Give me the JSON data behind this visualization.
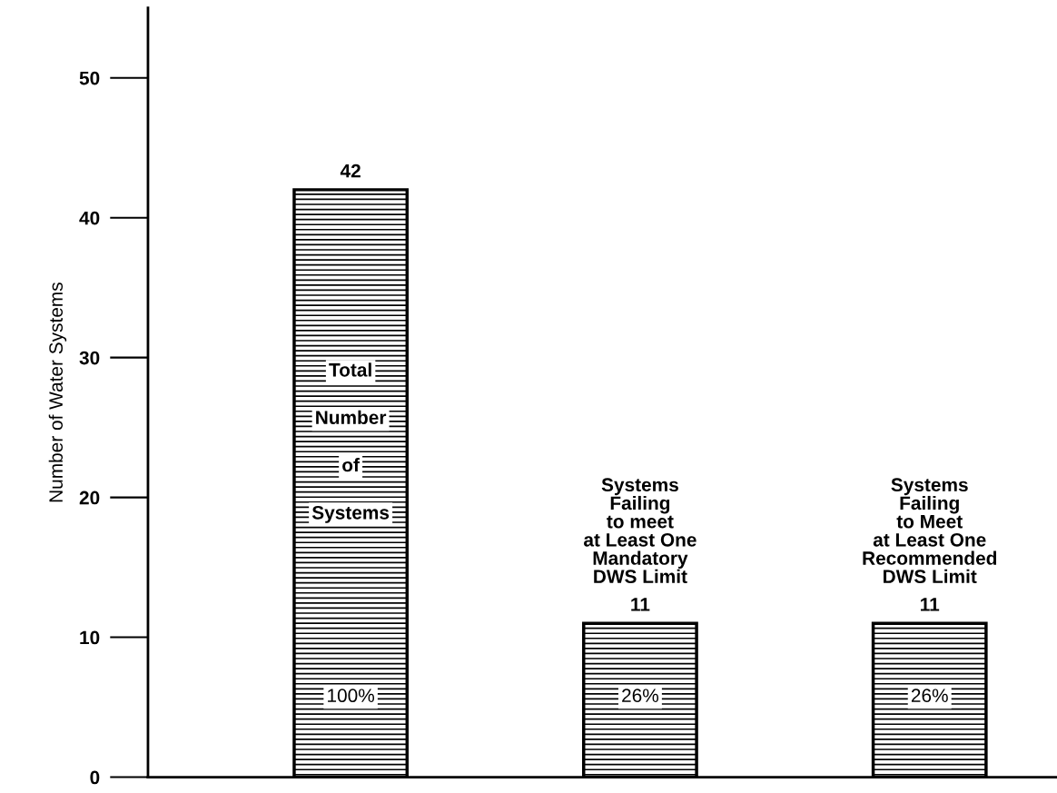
{
  "chart_data": {
    "type": "bar",
    "ylabel": "Number of Water Systems",
    "categories": [
      "Total\nNumber\nof\nSystems",
      "Systems\nFailing\nto meet\nat Least One\nMandatory\nDWS Limit",
      "Systems\nFailing\nto Meet\nat Least One\nRecommended\nDWS Limit"
    ],
    "values": [
      42,
      11,
      11
    ],
    "color": "#000000",
    "data_labels": true,
    "ylim": [
      0,
      55
    ],
    "yticks": [
      0,
      10,
      20,
      30,
      40,
      50
    ],
    "grid": false,
    "annotations": [
      "100%",
      "26%",
      "26%"
    ]
  }
}
